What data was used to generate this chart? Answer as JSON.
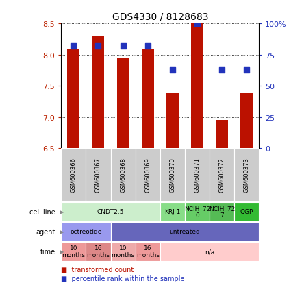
{
  "title": "GDS4330 / 8128683",
  "samples": [
    "GSM600366",
    "GSM600367",
    "GSM600368",
    "GSM600369",
    "GSM600370",
    "GSM600371",
    "GSM600372",
    "GSM600373"
  ],
  "bar_values": [
    8.1,
    8.3,
    7.95,
    8.1,
    7.38,
    8.5,
    6.95,
    7.38
  ],
  "dot_values": [
    82,
    82,
    82,
    82,
    63,
    100,
    63,
    63
  ],
  "ylim_left": [
    6.5,
    8.5
  ],
  "ylim_right": [
    0,
    100
  ],
  "yticks_left": [
    6.5,
    7.0,
    7.5,
    8.0,
    8.5
  ],
  "yticks_right": [
    0,
    25,
    50,
    75,
    100
  ],
  "bar_color": "#BB1100",
  "dot_color": "#2233BB",
  "bar_width": 0.5,
  "sample_bg": "#CCCCCC",
  "cell_line_data": [
    {
      "label": "CNDT2.5",
      "span": [
        0,
        4
      ],
      "color": "#CCEECC"
    },
    {
      "label": "KRJ-1",
      "span": [
        4,
        5
      ],
      "color": "#88DD88"
    },
    {
      "label": "NCIH_72\n0",
      "span": [
        5,
        6
      ],
      "color": "#66CC66"
    },
    {
      "label": "NCIH_72\n7",
      "span": [
        6,
        7
      ],
      "color": "#55BB55"
    },
    {
      "label": "QGP",
      "span": [
        7,
        8
      ],
      "color": "#33BB33"
    }
  ],
  "agent_data": [
    {
      "label": "octreotide",
      "span": [
        0,
        2
      ],
      "color": "#9999EE"
    },
    {
      "label": "untreated",
      "span": [
        2,
        8
      ],
      "color": "#6666BB"
    }
  ],
  "time_data": [
    {
      "label": "10\nmonths",
      "span": [
        0,
        1
      ],
      "color": "#EE9999"
    },
    {
      "label": "16\nmonths",
      "span": [
        1,
        2
      ],
      "color": "#DD8888"
    },
    {
      "label": "10\nmonths",
      "span": [
        2,
        3
      ],
      "color": "#EEAAAA"
    },
    {
      "label": "16\nmonths",
      "span": [
        3,
        4
      ],
      "color": "#EE9999"
    },
    {
      "label": "n/a",
      "span": [
        4,
        8
      ],
      "color": "#FFCCCC"
    }
  ],
  "row_labels": [
    "cell line",
    "agent",
    "time"
  ],
  "legend_items": [
    {
      "label": "transformed count",
      "color": "#BB1100"
    },
    {
      "label": "percentile rank within the sample",
      "color": "#2233BB"
    }
  ],
  "tick_color_left": "#BB2200",
  "tick_color_right": "#2233BB"
}
